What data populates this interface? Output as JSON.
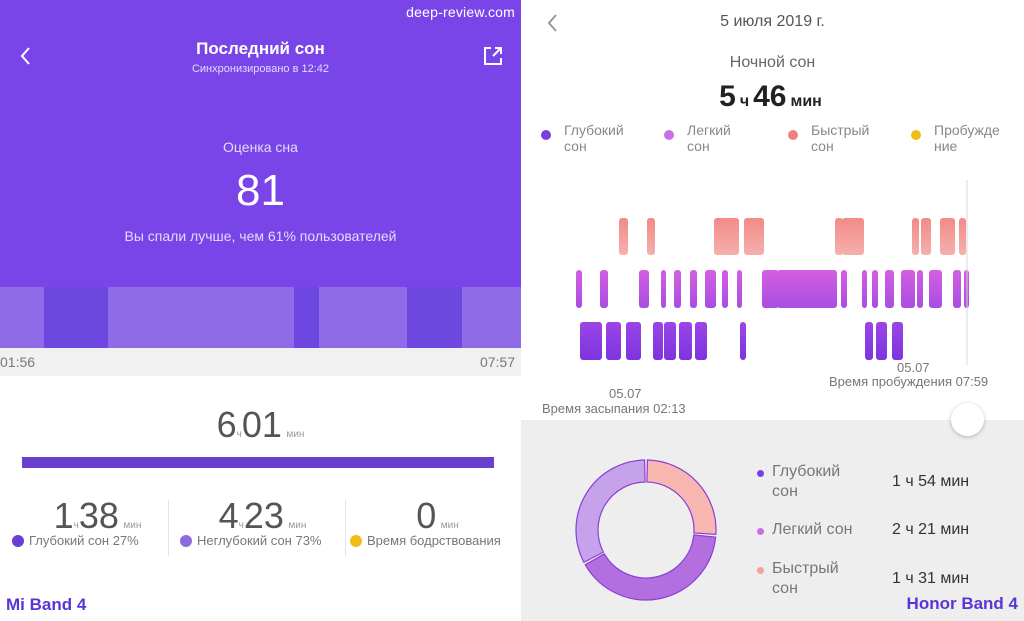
{
  "colors": {
    "hero_bg": "#7a45e8",
    "deep": "#7a3fe0",
    "light": "#b25ee0",
    "rem": "#f08080",
    "awake": "#f2bb16",
    "mi_deep_dot": "#6b3ed1",
    "mi_light_dot": "#8f6be0",
    "donut_deep": "#c6a2ea",
    "donut_light": "#b36fe0",
    "donut_rem": "#f7b6b0"
  },
  "watermark": "deep-review.com",
  "mi_band": {
    "title": "Последний сон",
    "synced": "Синхронизировано в 12:42",
    "score_label": "Оценка сна",
    "score": "81",
    "compare": "Вы спали лучше, чем 61% пользователей",
    "start_time": "01:56",
    "end_time": "07:57",
    "total_hours": "6",
    "total_h_unit": "ч",
    "total_minutes": "01",
    "total_m_unit": "мин",
    "stats": [
      {
        "hours": "1",
        "h_unit": "ч",
        "minutes": "38",
        "m_unit": "мин",
        "label": "Глубокий сон 27%"
      },
      {
        "hours": "4",
        "h_unit": "ч",
        "minutes": "23",
        "m_unit": "мин",
        "label": "Неглубокий сон 73%"
      },
      {
        "hours": "",
        "h_unit": "",
        "minutes": "0",
        "m_unit": "мин",
        "label": "Время бодрствования"
      }
    ],
    "device": "Mi Band 4"
  },
  "honor_band": {
    "date": "5 июля 2019 г.",
    "night_label": "Ночной сон",
    "duration_hours": "5",
    "duration_h_unit": "ч",
    "duration_minutes": "46",
    "duration_m_unit": "мин",
    "legend": [
      {
        "line1": "Глубокий",
        "line2": "сон"
      },
      {
        "line1": "Легкий",
        "line2": "сон"
      },
      {
        "line1": "Быстрый",
        "line2": "сон"
      },
      {
        "line1": "Пробужде",
        "line2": "ние"
      }
    ],
    "sleep_date": "05.07",
    "sleep_time_label": "Время засыпания 02:13",
    "wake_date": "05.07",
    "wake_time_label": "Время пробуждения 07:59",
    "stages": [
      {
        "name": "Глубокий сон",
        "name_line1": "Глубокий",
        "name_line2": "сон",
        "value": "1 ч 54 мин",
        "minutes": 114
      },
      {
        "name": "Легкий сон",
        "name_line1": "Легкий сон",
        "name_line2": "",
        "value": "2 ч 21 мин",
        "minutes": 141
      },
      {
        "name": "Быстрый сон",
        "name_line1": "Быстрый",
        "name_line2": "сон",
        "value": "1 ч 31 мин",
        "minutes": 91
      }
    ],
    "device": "Honor Band 4"
  }
}
